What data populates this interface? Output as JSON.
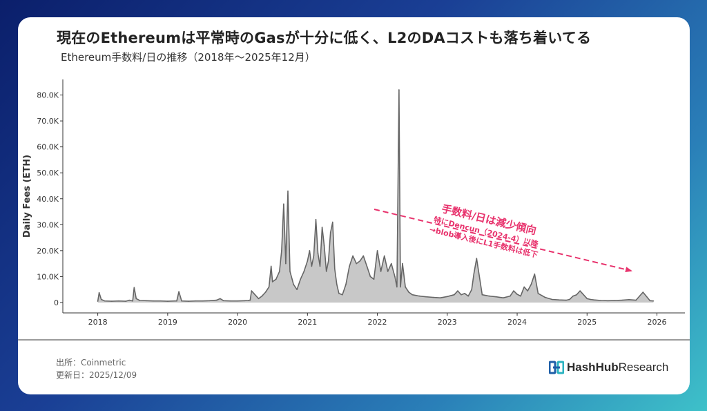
{
  "header": {
    "title": "現在のEthereumは平常時のGasが十分に低く、L2のDAコストも落ち着いてる",
    "subtitle": "Ethereum手数料/日の推移（2018年〜2025年12月）"
  },
  "footer": {
    "source": "出所：Coinmetric",
    "updated": "更新日：2025/12/09",
    "brand_bold": "HashHub",
    "brand_light": "Research",
    "brand_logo_icon": "hashhub-logo-icon"
  },
  "annotation": {
    "headline": "手数料/日は減少傾向",
    "line1": "特にDencun（2024-4）以降",
    "line2": "→blob導入後にL1手数料は低下",
    "color": "#e8336d"
  },
  "colors": {
    "line": "#666666",
    "fill": "#c8c8c8",
    "axis": "#333333",
    "accent": "#e8336d"
  },
  "chart_data": {
    "type": "area",
    "title": "",
    "xlabel": "",
    "ylabel": "Daily Fees (ETH)",
    "xlim": [
      2017.5,
      2026.4
    ],
    "ylim": [
      -4000,
      86000
    ],
    "y_ticks": [
      0,
      10000,
      20000,
      30000,
      40000,
      50000,
      60000,
      70000,
      80000
    ],
    "y_tick_labels": [
      "0",
      "10.0K",
      "20.0K",
      "30.0K",
      "40.0K",
      "50.0K",
      "60.0K",
      "70.0K",
      "80.0K"
    ],
    "x_ticks": [
      2018,
      2019,
      2020,
      2021,
      2022,
      2023,
      2024,
      2025,
      2026
    ],
    "x_tick_labels": [
      "2018",
      "2019",
      "2020",
      "2021",
      "2022",
      "2023",
      "2024",
      "2025",
      "2026"
    ],
    "grid": false,
    "legend": "none",
    "series": [
      {
        "name": "",
        "x": [
          2018.0,
          2018.02,
          2018.05,
          2018.1,
          2018.2,
          2018.3,
          2018.4,
          2018.45,
          2018.5,
          2018.52,
          2018.55,
          2018.6,
          2018.7,
          2018.8,
          2018.9,
          2019.0,
          2019.1,
          2019.13,
          2019.16,
          2019.2,
          2019.3,
          2019.4,
          2019.5,
          2019.6,
          2019.7,
          2019.75,
          2019.8,
          2019.9,
          2020.0,
          2020.1,
          2020.15,
          2020.18,
          2020.2,
          2020.3,
          2020.35,
          2020.4,
          2020.45,
          2020.48,
          2020.5,
          2020.55,
          2020.6,
          2020.63,
          2020.66,
          2020.69,
          2020.72,
          2020.75,
          2020.78,
          2020.8,
          2020.85,
          2020.9,
          2020.95,
          2021.0,
          2021.03,
          2021.06,
          2021.09,
          2021.12,
          2021.15,
          2021.18,
          2021.21,
          2021.24,
          2021.27,
          2021.3,
          2021.33,
          2021.36,
          2021.39,
          2021.42,
          2021.45,
          2021.5,
          2021.55,
          2021.6,
          2021.65,
          2021.7,
          2021.75,
          2021.8,
          2021.85,
          2021.9,
          2021.95,
          2022.0,
          2022.05,
          2022.1,
          2022.15,
          2022.2,
          2022.25,
          2022.28,
          2022.31,
          2022.33,
          2022.36,
          2022.4,
          2022.45,
          2022.5,
          2022.6,
          2022.7,
          2022.8,
          2022.9,
          2023.0,
          2023.1,
          2023.15,
          2023.2,
          2023.25,
          2023.3,
          2023.35,
          2023.38,
          2023.42,
          2023.5,
          2023.6,
          2023.7,
          2023.8,
          2023.9,
          2023.95,
          2024.0,
          2024.05,
          2024.1,
          2024.15,
          2024.2,
          2024.25,
          2024.3,
          2024.4,
          2024.5,
          2024.6,
          2024.7,
          2024.75,
          2024.8,
          2024.85,
          2024.9,
          2025.0,
          2025.05,
          2025.1,
          2025.2,
          2025.3,
          2025.4,
          2025.5,
          2025.6,
          2025.7,
          2025.8,
          2025.9,
          2025.95
        ],
        "values": [
          500,
          3800,
          1200,
          600,
          500,
          600,
          500,
          900,
          600,
          5800,
          1500,
          800,
          700,
          600,
          600,
          500,
          600,
          600,
          4200,
          600,
          500,
          600,
          600,
          700,
          900,
          1500,
          700,
          600,
          600,
          700,
          800,
          900,
          4500,
          1500,
          2500,
          4000,
          6000,
          14000,
          8000,
          9000,
          12000,
          20000,
          38000,
          15000,
          43000,
          12000,
          9000,
          7000,
          5000,
          9000,
          12000,
          16000,
          20000,
          14000,
          18000,
          32000,
          19000,
          14000,
          29000,
          22000,
          12000,
          16000,
          27000,
          31000,
          13000,
          7000,
          3500,
          3000,
          7000,
          14000,
          18000,
          15000,
          16000,
          18000,
          14000,
          10000,
          9000,
          20000,
          12000,
          18000,
          12000,
          15000,
          10000,
          6000,
          82000,
          6000,
          15000,
          6000,
          4000,
          3000,
          2500,
          2200,
          2000,
          1800,
          2300,
          3000,
          4500,
          3000,
          3500,
          2500,
          5000,
          11000,
          17000,
          3000,
          2500,
          2200,
          1800,
          2500,
          4500,
          3200,
          2500,
          6000,
          4500,
          7000,
          11000,
          3500,
          2000,
          1200,
          1000,
          900,
          1200,
          2500,
          3000,
          4500,
          1500,
          1200,
          1000,
          800,
          700,
          800,
          900,
          1100,
          900,
          4000,
          700,
          600
        ]
      }
    ]
  }
}
